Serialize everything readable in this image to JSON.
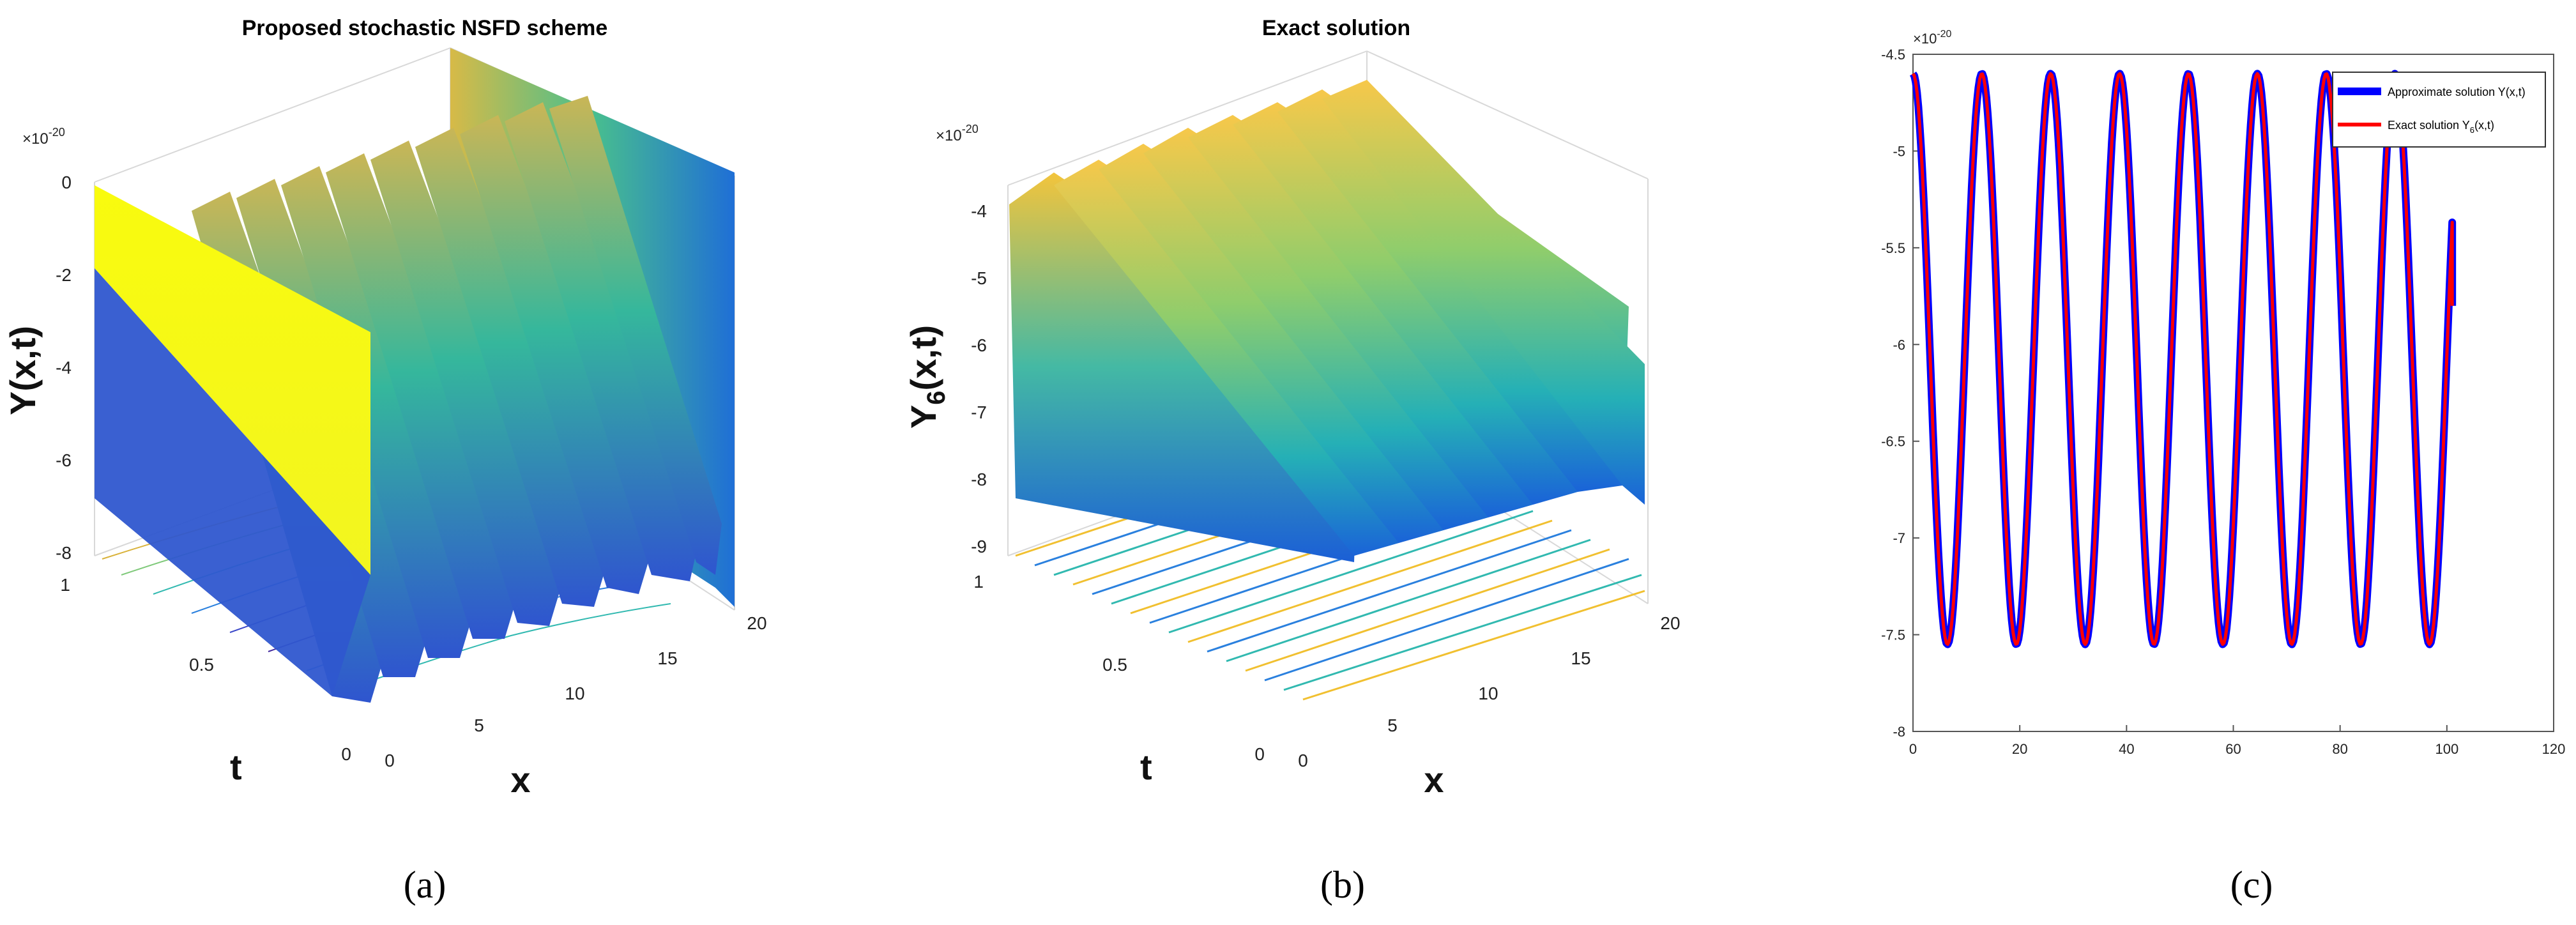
{
  "panels": [
    {
      "caption": "(a)",
      "title": "Proposed stochastic NSFD scheme",
      "type": "surface3d",
      "exponent_prefix": "×10",
      "exponent_power": "-20",
      "zlabel": "Y(x,t)",
      "xlabel": "x",
      "ylabel": "t",
      "zticks": [
        "-8",
        "-6",
        "-4",
        "-2",
        "0"
      ],
      "xticks": [
        "0",
        "5",
        "10",
        "15",
        "20"
      ],
      "yticks": [
        "0",
        "0.5",
        "1"
      ],
      "zlim": [
        -8,
        0
      ],
      "xlim": [
        0,
        20
      ],
      "ylim": [
        0,
        1
      ]
    },
    {
      "caption": "(b)",
      "title": "Exact solution",
      "type": "surface3d",
      "exponent_prefix": "×10",
      "exponent_power": "-20",
      "zlabel_main": "Y",
      "zlabel_sub": "6",
      "zlabel_rest": "(x,t)",
      "xlabel": "x",
      "ylabel": "t",
      "zticks": [
        "-9",
        "-8",
        "-7",
        "-6",
        "-5",
        "-4"
      ],
      "xticks": [
        "0",
        "5",
        "10",
        "15",
        "20"
      ],
      "yticks": [
        "0",
        "0.5",
        "1"
      ],
      "zlim": [
        -9,
        -3.6
      ],
      "xlim": [
        0,
        20
      ],
      "ylim": [
        0,
        1
      ]
    }
  ],
  "panel_c": {
    "caption": "(c)",
    "exponent_prefix": "×10",
    "exponent_power": "-20",
    "legend": {
      "approx": "Approximate solution Y(x,t)",
      "exact_main": "Exact solution Y",
      "exact_sub": "6",
      "exact_rest": "(x,t)"
    }
  },
  "colors": {
    "approx": "#0000ff",
    "exact": "#ff0000",
    "surface_low": "#3e26a8",
    "surface_mid": "#2ab7a9",
    "surface_high": "#f9fb0e"
  },
  "chart_data": [
    {
      "type": "surface3d",
      "title": "Proposed stochastic NSFD scheme",
      "xlabel": "x",
      "ylabel": "t",
      "zlabel": "Y(x,t)",
      "x_range": [
        0,
        20
      ],
      "t_range": [
        0,
        1
      ],
      "z_range": [
        -8,
        0
      ],
      "scale": "×10^-20",
      "description_peaks": 9
    },
    {
      "type": "surface3d",
      "title": "Exact solution",
      "xlabel": "x",
      "ylabel": "t",
      "zlabel": "Y6(x,t)",
      "x_range": [
        0,
        20
      ],
      "t_range": [
        0,
        1
      ],
      "z_range": [
        -9,
        -3.6
      ],
      "scale": "×10^-20",
      "description_peaks": 9
    },
    {
      "type": "line",
      "title": "",
      "xlabel": "",
      "ylabel": "",
      "xlim": [
        0,
        120
      ],
      "ylim": [
        -8,
        -4.5
      ],
      "xticks": [
        0,
        20,
        40,
        60,
        80,
        100,
        120
      ],
      "yticks": [
        -4.5,
        -5,
        -5.5,
        -6,
        -6.5,
        -7,
        -7.5,
        -8
      ],
      "scale": "×10^-20",
      "legend_position": "top-right",
      "series": [
        {
          "name": "Approximate solution Y(x,t)",
          "color": "#0000ff",
          "period": 12.9,
          "max": -4.6,
          "min": -7.55,
          "x_start": 0,
          "x_end": 101,
          "end_value": -5.8
        },
        {
          "name": "Exact solution Y6(x,t)",
          "color": "#ff0000",
          "period": 12.9,
          "max": -4.6,
          "min": -7.55,
          "x_start": 0,
          "x_end": 101,
          "end_value": -5.8
        }
      ]
    }
  ]
}
